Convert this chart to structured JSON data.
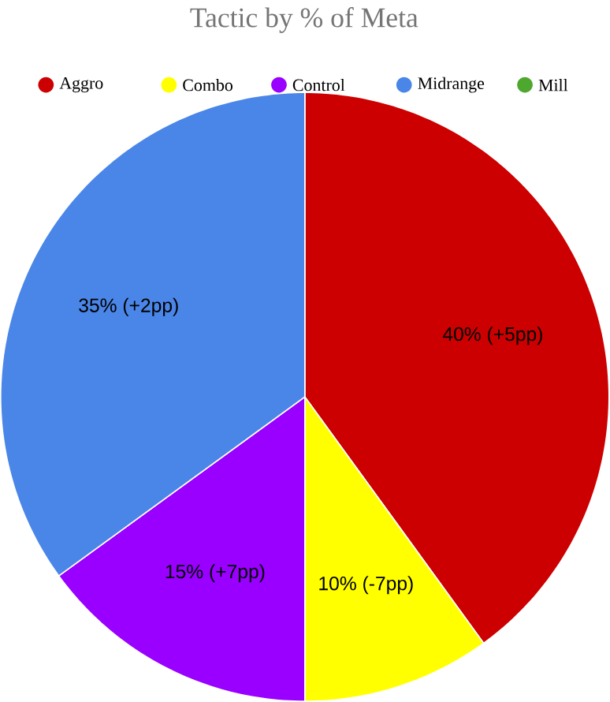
{
  "chart_data": {
    "type": "pie",
    "title": "Tactic by % of Meta",
    "categories": [
      "Aggro",
      "Combo",
      "Control",
      "Midrange",
      "Mill"
    ],
    "values": [
      40,
      10,
      15,
      35,
      0
    ],
    "colors": [
      "#cc0000",
      "#ffff00",
      "#9900ff",
      "#4a86e8",
      "#4ea72e"
    ],
    "value_labels": [
      "40% (+5pp)",
      "10% (-7pp)",
      "15% (+7pp)",
      "35% (+2pp)",
      null
    ],
    "legend": "top"
  }
}
